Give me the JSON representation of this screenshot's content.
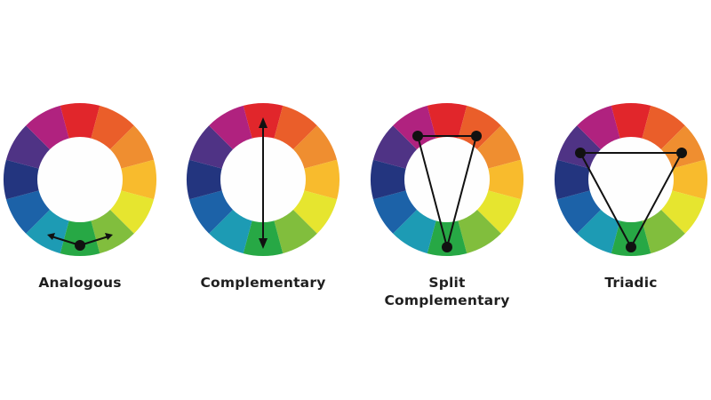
{
  "wheel_colors": [
    {
      "name": "red",
      "hex": "#E1262B"
    },
    {
      "name": "red-orange",
      "hex": "#EA5E2A"
    },
    {
      "name": "orange",
      "hex": "#EF8E30"
    },
    {
      "name": "yellow-orange",
      "hex": "#F8BB2D"
    },
    {
      "name": "yellow",
      "hex": "#E6E52F"
    },
    {
      "name": "yellow-green",
      "hex": "#81BE3D"
    },
    {
      "name": "green",
      "hex": "#27A845"
    },
    {
      "name": "blue-green",
      "hex": "#1D9BB4"
    },
    {
      "name": "blue",
      "hex": "#1C62A8"
    },
    {
      "name": "blue-violet",
      "hex": "#23357F"
    },
    {
      "name": "violet",
      "hex": "#4F3385"
    },
    {
      "name": "red-violet",
      "hex": "#B0227F"
    }
  ],
  "marker_color": "#111111",
  "harmonies": [
    {
      "id": "analogous",
      "label": "Analogous",
      "marker": "arrows-from-bottom"
    },
    {
      "id": "complementary",
      "label": "Complementary",
      "marker": "double-arrow"
    },
    {
      "id": "split-complementary",
      "label_line1": "Split",
      "label_line2": "Complementary",
      "marker": "triangle-narrow"
    },
    {
      "id": "triadic",
      "label": "Triadic",
      "marker": "triangle-equilateral"
    }
  ]
}
